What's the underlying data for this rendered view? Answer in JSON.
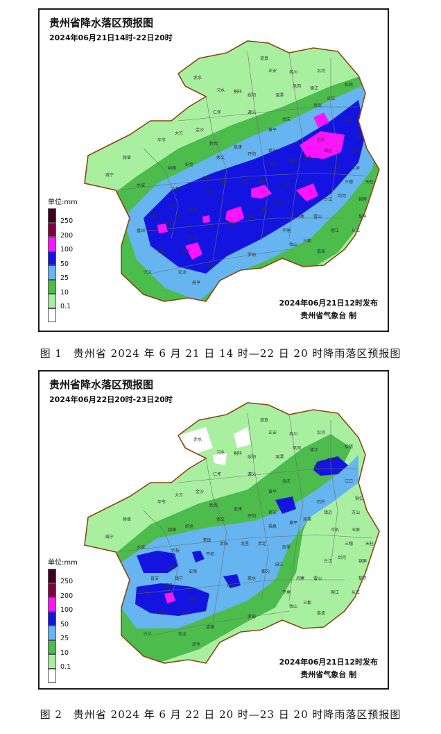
{
  "colors": {
    "white": "#ffffff",
    "c01": "#a8f0a0",
    "c10": "#4cbc4c",
    "c25": "#66b4f0",
    "c50": "#1414e0",
    "c100": "#ff14ff",
    "c200": "#800040",
    "c250": "#400020",
    "border": "#8b4513",
    "county": "#707070"
  },
  "legend": {
    "unit": "单位:mm",
    "levels": [
      {
        "label": "250",
        "color": "#400020"
      },
      {
        "label": "200",
        "color": "#800040"
      },
      {
        "label": "100",
        "color": "#ff14ff"
      },
      {
        "label": "50",
        "color": "#1414e0"
      },
      {
        "label": "25",
        "color": "#66b4f0"
      },
      {
        "label": "10",
        "color": "#4cbc4c"
      },
      {
        "label": "0.1",
        "color": "#a8f0a0"
      },
      {
        "label": "",
        "color": "#ffffff"
      }
    ]
  },
  "maps": [
    {
      "title": "贵州省降水落区预报图",
      "period": "2024年06月21日14时-22日20时",
      "issued": "2024年06月21日12时发布",
      "agency": "贵州省气象台 制",
      "caption": "图 1　贵州省 2024 年 6 月 21 日 14 时—22 日 20 时降雨落区预报图",
      "cities": [
        "道真",
        "正安",
        "务川",
        "沿河",
        "松桃",
        "江口",
        "铜仁",
        "思南",
        "德江",
        "印江",
        "石阡",
        "湄潭",
        "凤冈",
        "余庆",
        "遵义",
        "仁怀",
        "习水",
        "赤水",
        "桐梓",
        "绥阳",
        "金沙",
        "黔西",
        "大方",
        "毕节",
        "赫章",
        "威宁",
        "纳雍",
        "织金",
        "水城",
        "六枝",
        "盘州",
        "普安",
        "晴隆",
        "兴仁",
        "兴义",
        "安龙",
        "册亨",
        "贞丰",
        "望谟",
        "紫云",
        "镇宁",
        "关岭",
        "安顺",
        "平坝",
        "清镇",
        "修文",
        "息烽",
        "开阳",
        "贵阳",
        "龙里",
        "贵定",
        "福泉",
        "瓮安",
        "黄平",
        "施秉",
        "镇远",
        "岑巩",
        "玉屏",
        "三穗",
        "天柱",
        "锦屏",
        "剑河",
        "台江",
        "雷山",
        "榕江",
        "从江",
        "黎平",
        "丹寨",
        "三都",
        "荔波",
        "独山",
        "平塘",
        "罗甸",
        "长顺",
        "惠水",
        "都匀",
        "麻江",
        "凯里",
        "黄平",
        "万山"
      ]
    },
    {
      "title": "贵州省降水落区预报图",
      "period": "2024年06月22日20时-23日20时",
      "issued": "2024年06月21日12时发布",
      "agency": "贵州省气象台 制",
      "caption": "图 2　贵州省 2024 年 6 月 22 日 20 时—23 日 20 时降雨落区预报图",
      "cities": [
        "道真",
        "正安",
        "务川",
        "沿河",
        "松桃",
        "江口",
        "铜仁",
        "思南",
        "德江",
        "印江",
        "石阡",
        "湄潭",
        "凤冈",
        "余庆",
        "遵义",
        "仁怀",
        "习水",
        "赤水",
        "桐梓",
        "绥阳",
        "金沙",
        "黔西",
        "大方",
        "毕节",
        "赫章",
        "威宁",
        "纳雍",
        "织金",
        "水城",
        "六枝",
        "盘州",
        "普安",
        "晴隆",
        "兴仁",
        "兴义",
        "安龙",
        "册亨",
        "贞丰",
        "望谟",
        "紫云",
        "镇宁",
        "关岭",
        "安顺",
        "平坝",
        "清镇",
        "修文",
        "息烽",
        "开阳",
        "贵阳",
        "龙里",
        "贵定",
        "福泉",
        "瓮安",
        "黄平",
        "施秉",
        "镇远",
        "岑巩",
        "玉屏",
        "三穗",
        "天柱",
        "锦屏",
        "剑河",
        "台江",
        "雷山",
        "榕江",
        "从江",
        "黎平",
        "丹寨",
        "三都",
        "荔波",
        "独山",
        "平塘",
        "罗甸",
        "长顺",
        "惠水",
        "都匀",
        "麻江",
        "凯里",
        "黄平",
        "万山"
      ]
    }
  ]
}
